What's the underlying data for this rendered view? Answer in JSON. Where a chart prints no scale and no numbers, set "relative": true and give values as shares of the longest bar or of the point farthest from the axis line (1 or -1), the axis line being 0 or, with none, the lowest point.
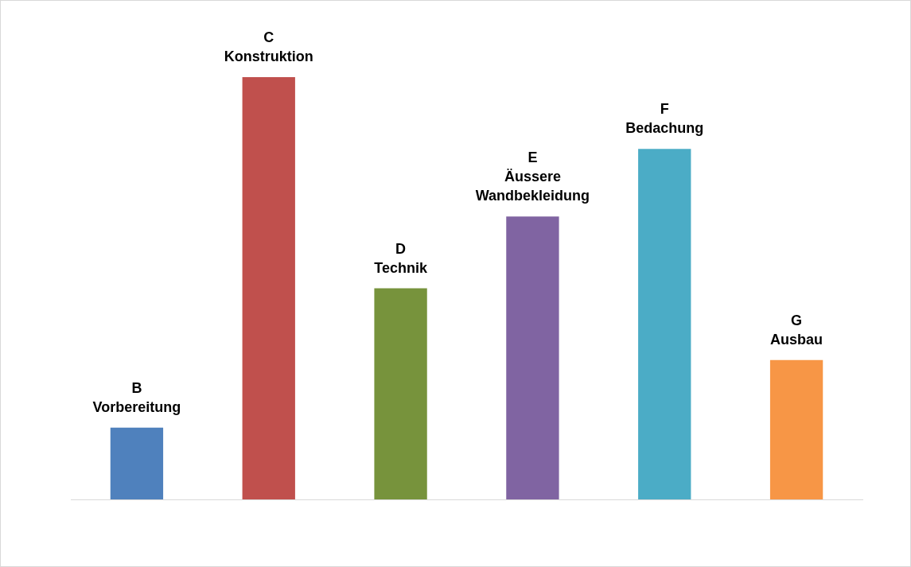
{
  "chart_data": {
    "type": "bar",
    "relative": true,
    "categories": [
      "B\nVorbereitung",
      "C\nKonstruktion",
      "D\nTechnik",
      "E\nÄussere\nWandbekleidung",
      "F\nBedachung",
      "G\nAusbau"
    ],
    "values": [
      0.17,
      1,
      0.5,
      0.67,
      0.83,
      0.33
    ],
    "colors": [
      "#4f81bd",
      "#c0504d",
      "#77933c",
      "#8064a2",
      "#4bacc6",
      "#f79646"
    ],
    "legend": false
  }
}
